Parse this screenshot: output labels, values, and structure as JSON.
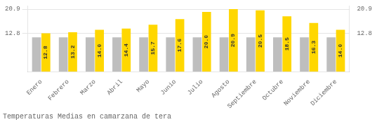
{
  "chart_data": {
    "type": "bar",
    "title": "Temperaturas Medias en camarzana de tera",
    "categories": [
      "Enero",
      "Febrero",
      "Marzo",
      "Abril",
      "Mayo",
      "Junio",
      "Julio",
      "Agosto",
      "Septiembre",
      "Octubre",
      "Noviembre",
      "Diciembre"
    ],
    "series": [
      {
        "color": "#BEBEBE",
        "values": [
          11.5,
          11.5,
          11.5,
          11.5,
          11.5,
          11.5,
          11.5,
          11.5,
          11.5,
          11.5,
          11.5,
          11.5
        ]
      },
      {
        "color": "#FFD700",
        "values": [
          12.8,
          13.2,
          14.0,
          14.4,
          15.7,
          17.6,
          20.0,
          20.9,
          20.5,
          18.5,
          16.3,
          14.0
        ],
        "value_labels": [
          "12.8",
          "13.2",
          "14.0",
          "14.4",
          "15.7",
          "17.6",
          "20.0",
          "20.9",
          "20.5",
          "18.5",
          "16.3",
          "14.0"
        ],
        "data_labels": true
      }
    ],
    "ylim": [
      0,
      22.0
    ],
    "yticks": [
      12.8,
      20.9
    ],
    "y2lim": [
      0,
      22.0
    ],
    "y2ticks": [
      12.8,
      20.9
    ],
    "grid": true
  }
}
